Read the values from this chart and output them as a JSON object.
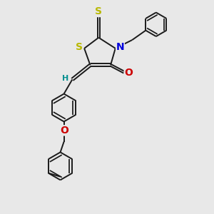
{
  "bg_color": "#e8e8e8",
  "bond_color": "#1a1a1a",
  "S_color": "#b8b800",
  "N_color": "#0000dd",
  "O_color": "#cc0000",
  "H_color": "#009090",
  "line_width": 1.4,
  "dbo": 0.06,
  "font_size": 9,
  "xlim": [
    0.5,
    8.5
  ],
  "ylim": [
    0.3,
    9.2
  ]
}
